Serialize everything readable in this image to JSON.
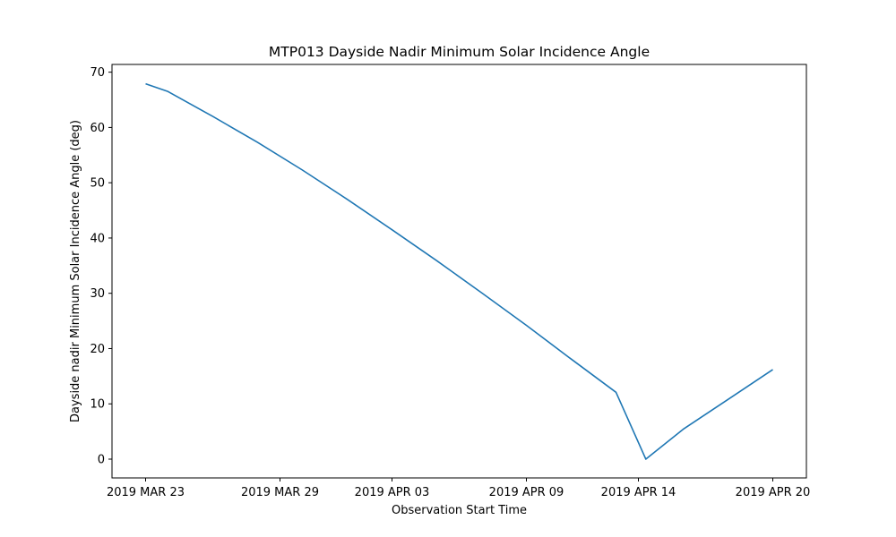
{
  "chart_data": {
    "type": "line",
    "title": "MTP013 Dayside Nadir Minimum Solar Incidence Angle",
    "xlabel": "Observation Start Time",
    "ylabel": "Dayside nadir Minimum Solar Incidence Angle (deg)",
    "x_tick_labels": [
      "2019 MAR 23",
      "2019 MAR 29",
      "2019 APR 03",
      "2019 APR 09",
      "2019 APR 14",
      "2019 APR 20"
    ],
    "x_ticks": [
      "2019-03-23",
      "2019-03-29",
      "2019-04-03",
      "2019-04-09",
      "2019-04-14",
      "2019-04-20"
    ],
    "y_ticks": [
      0,
      10,
      20,
      30,
      40,
      50,
      60,
      70
    ],
    "xlim": [
      "2019-03-21T12:00",
      "2019-04-21T12:00"
    ],
    "ylim": [
      -3.4,
      71.4
    ],
    "grid": false,
    "series": [
      {
        "name": "",
        "color": "#1f77b4",
        "x": [
          "2019-03-23",
          "2019-03-24",
          "2019-03-26",
          "2019-03-28",
          "2019-03-30",
          "2019-04-01",
          "2019-04-03",
          "2019-04-05",
          "2019-04-07",
          "2019-04-09",
          "2019-04-11",
          "2019-04-13",
          "2019-04-14T08:00",
          "2019-04-16",
          "2019-04-18",
          "2019-04-20"
        ],
        "y": [
          67.9,
          66.5,
          62.0,
          57.3,
          52.3,
          47.0,
          41.5,
          35.9,
          30.1,
          24.2,
          18.1,
          12.1,
          0.0,
          5.4,
          10.8,
          16.2
        ]
      }
    ]
  }
}
